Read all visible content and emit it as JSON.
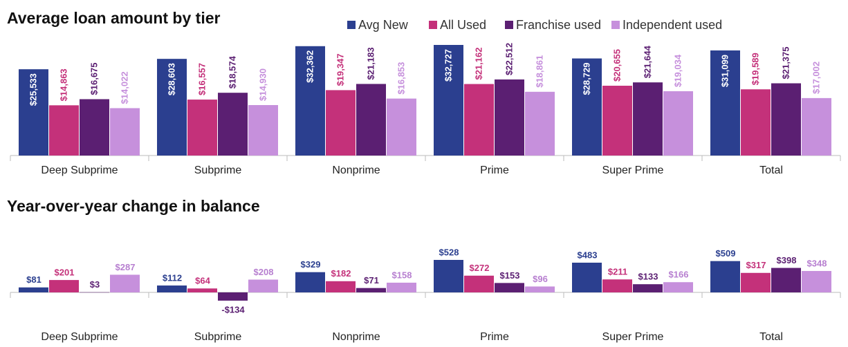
{
  "chart_data": [
    {
      "type": "bar",
      "title": "Average loan amount by tier",
      "categories": [
        "Deep Subprime",
        "Subprime",
        "Nonprime",
        "Prime",
        "Super Prime",
        "Total"
      ],
      "legend": "top-right",
      "series": [
        {
          "name": "Avg New",
          "color": "#2b3f8f",
          "values": [
            25533,
            28603,
            32362,
            32727,
            28729,
            31099
          ],
          "value_labels": [
            "$25,533",
            "$28,603",
            "$32,362",
            "$32,727",
            "$28,729",
            "$31,099"
          ]
        },
        {
          "name": "All Used",
          "color": "#c4317a",
          "values": [
            14863,
            16557,
            19347,
            21162,
            20655,
            19589
          ],
          "value_labels": [
            "$14,863",
            "$16,557",
            "$19,347",
            "$21,162",
            "$20,655",
            "$19,589"
          ]
        },
        {
          "name": "Franchise used",
          "color": "#5b1f72",
          "values": [
            16675,
            18574,
            21183,
            22512,
            21644,
            21375
          ],
          "value_labels": [
            "$16,675",
            "$18,574",
            "$21,183",
            "$22,512",
            "$21,644",
            "$21,375"
          ]
        },
        {
          "name": "Independent used",
          "color": "#c690dc",
          "values": [
            14022,
            14930,
            16853,
            18861,
            19034,
            17002
          ],
          "value_labels": [
            "$14,022",
            "$14,930",
            "$16,853",
            "$18,861",
            "$19,034",
            "$17,002"
          ]
        }
      ]
    },
    {
      "type": "bar",
      "title": "Year-over-year change in balance",
      "categories": [
        "Deep Subprime",
        "Subprime",
        "Nonprime",
        "Prime",
        "Super Prime",
        "Total"
      ],
      "series": [
        {
          "color": "#2b3f8f",
          "values": [
            81,
            112,
            329,
            528,
            483,
            509
          ],
          "value_labels": [
            "$81",
            "$112",
            "$329",
            "$528",
            "$483",
            "$509"
          ]
        },
        {
          "color": "#c4317a",
          "values": [
            201,
            64,
            182,
            272,
            211,
            317
          ],
          "value_labels": [
            "$201",
            "$64",
            "$182",
            "$272",
            "$211",
            "$317"
          ]
        },
        {
          "color": "#5b1f72",
          "values": [
            3,
            -134,
            71,
            153,
            133,
            398
          ],
          "value_labels": [
            "$3",
            "-$134",
            "$71",
            "$153",
            "$133",
            "$398"
          ]
        },
        {
          "color": "#c690dc",
          "values": [
            287,
            208,
            158,
            96,
            166,
            348
          ],
          "value_labels": [
            "$287",
            "$208",
            "$158",
            "$96",
            "$166",
            "$348"
          ]
        }
      ]
    }
  ]
}
